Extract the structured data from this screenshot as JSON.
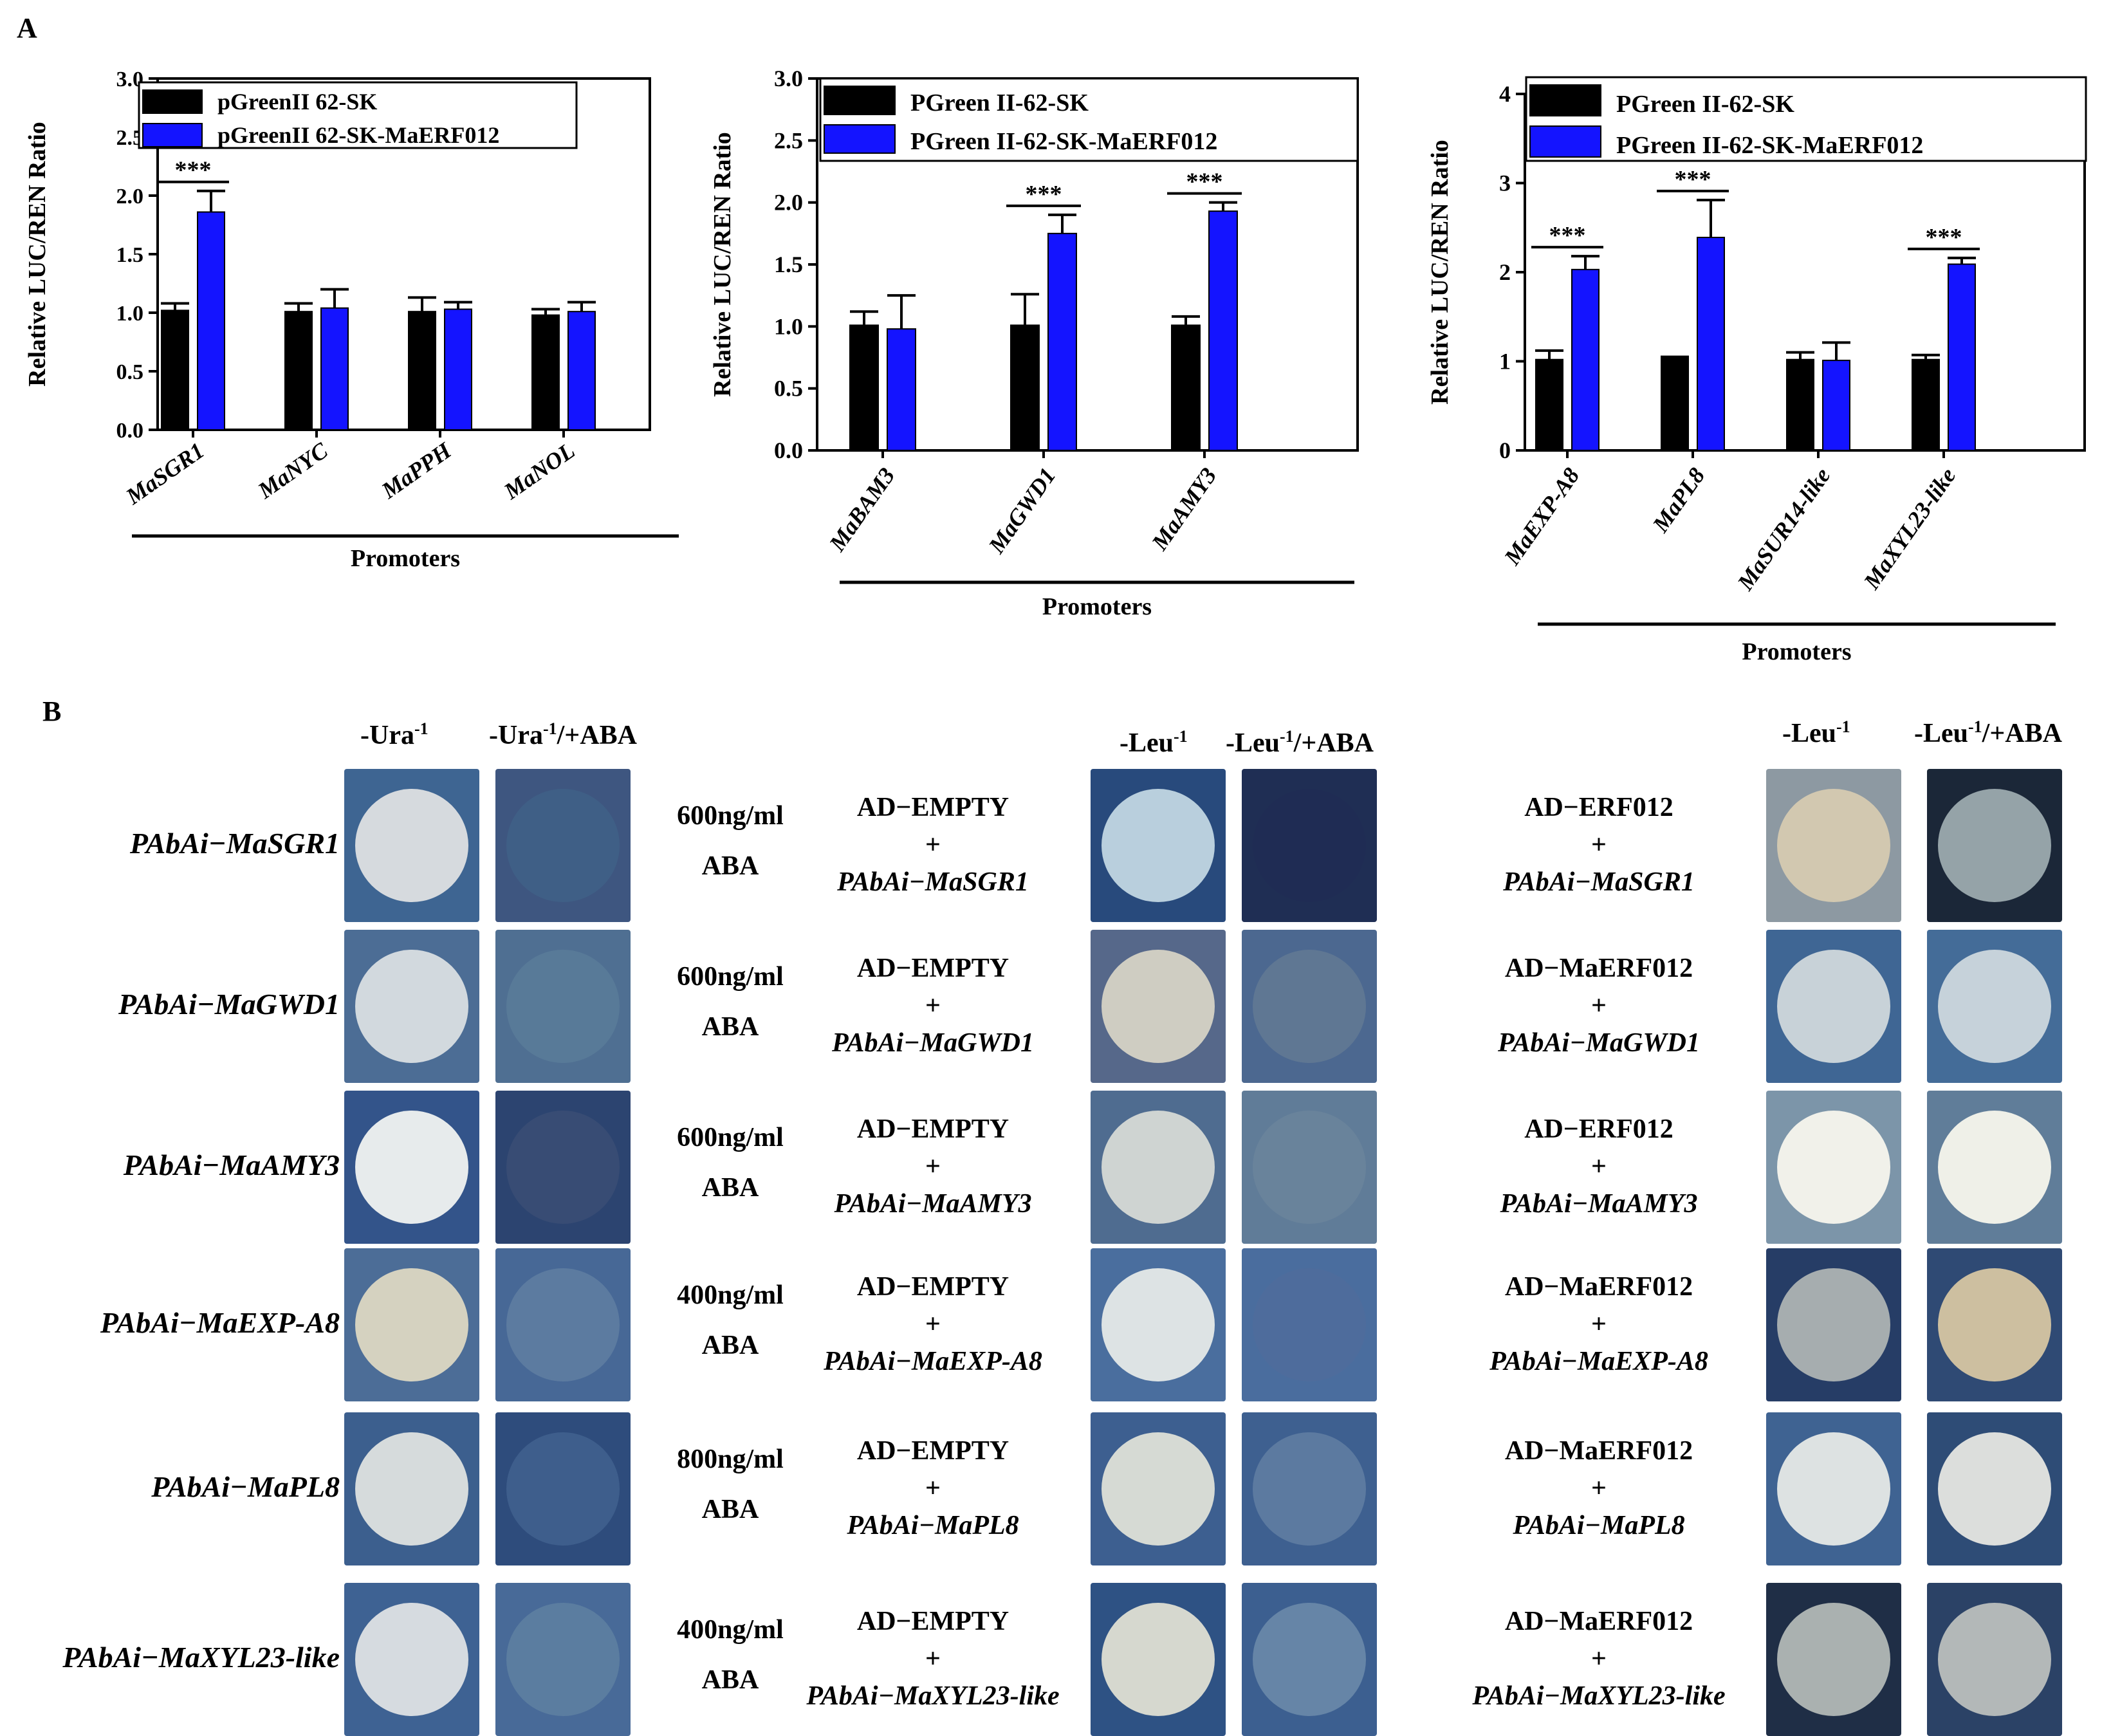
{
  "panel_a_label": "A",
  "panel_b_label": "B",
  "chart_data": [
    {
      "type": "bar",
      "ylabel": "Relative LUC/REN Ratio",
      "xlabel": "Promoters",
      "ylim": [
        0,
        3.0
      ],
      "yticks": [
        "0.0",
        "0.5",
        "1.0",
        "1.5",
        "2.0",
        "2.5",
        "3.0"
      ],
      "categories": [
        "MaSGR1",
        "MaNYC",
        "MaPPH",
        "MaNOL"
      ],
      "series": [
        {
          "name": "pGreenII 62-SK",
          "color": "#000000",
          "values": [
            1.02,
            1.01,
            1.01,
            0.98
          ],
          "errors": [
            0.06,
            0.07,
            0.12,
            0.05
          ]
        },
        {
          "name": "pGreenII 62-SK-MaERF012",
          "color": "#1414ff",
          "values": [
            1.86,
            1.04,
            1.03,
            1.01
          ],
          "errors": [
            0.18,
            0.16,
            0.06,
            0.08
          ]
        }
      ],
      "significance": [
        {
          "category": 0,
          "label": "***"
        }
      ]
    },
    {
      "type": "bar",
      "ylabel": "Relative LUC/REN Ratio",
      "xlabel": "Promoters",
      "ylim": [
        0,
        3.0
      ],
      "yticks": [
        "0.0",
        "0.5",
        "1.0",
        "1.5",
        "2.0",
        "2.5",
        "3.0"
      ],
      "categories": [
        "MaBAM3",
        "MaGWD1",
        "MaAMY3"
      ],
      "series": [
        {
          "name": "PGreen II-62-SK",
          "color": "#000000",
          "values": [
            1.01,
            1.01,
            1.01
          ],
          "errors": [
            0.11,
            0.25,
            0.07
          ]
        },
        {
          "name": "PGreen II-62-SK-MaERF012",
          "color": "#1414ff",
          "values": [
            0.98,
            1.75,
            1.93
          ],
          "errors": [
            0.27,
            0.15,
            0.07
          ]
        }
      ],
      "significance": [
        {
          "category": 1,
          "label": "***"
        },
        {
          "category": 2,
          "label": "***"
        }
      ]
    },
    {
      "type": "bar",
      "ylabel": "Relative LUC/REN Ratio",
      "xlabel": "Promoters",
      "ylim": [
        0,
        4
      ],
      "yticks": [
        "0",
        "1",
        "2",
        "3",
        "4"
      ],
      "categories": [
        "MaEXP-A8",
        "MaPL8",
        "MaSUR14-like",
        "MaXYL23-like"
      ],
      "series": [
        {
          "name": "PGreen II-62-SK",
          "color": "#000000",
          "values": [
            1.02,
            1.03,
            1.02,
            1.02
          ],
          "errors": [
            0.1,
            0.02,
            0.08,
            0.05
          ]
        },
        {
          "name": "PGreen II-62-SK-MaERF012",
          "color": "#1414ff",
          "values": [
            2.03,
            2.39,
            1.01,
            2.09
          ],
          "errors": [
            0.15,
            0.42,
            0.2,
            0.07
          ]
        }
      ],
      "significance": [
        {
          "category": 0,
          "label": "***"
        },
        {
          "category": 1,
          "label": "***"
        },
        {
          "category": 3,
          "label": "***"
        }
      ]
    }
  ],
  "panel_b": {
    "left_headers": [
      "-Ura-1",
      "-Ura-1/+ABA"
    ],
    "mid_headers": [
      "-Leu-1",
      "-Leu-1/+ABA"
    ],
    "right_headers": [
      "-Leu-1",
      "-Leu-1/+ABA"
    ],
    "rows": [
      {
        "promoter": "PAbAi−MaSGR1",
        "conc": "600ng/ml",
        "aba": "ABA",
        "ad_empty": "AD−EMPTY",
        "plus": "+",
        "empty_gene": "PAbAi−MaSGR1",
        "ad_tf": "AD−ERF012",
        "tf_gene": "PAbAi−MaSGR1"
      },
      {
        "promoter": "PAbAi−MaGWD1",
        "conc": "600ng/ml",
        "aba": "ABA",
        "ad_empty": "AD−EMPTY",
        "plus": "+",
        "empty_gene": "PAbAi−MaGWD1",
        "ad_tf": "AD−MaERF012",
        "tf_gene": "PAbAi−MaGWD1"
      },
      {
        "promoter": "PAbAi−MaAMY3",
        "conc": "600ng/ml",
        "aba": "ABA",
        "ad_empty": "AD−EMPTY",
        "plus": "+",
        "empty_gene": "PAbAi−MaAMY3",
        "ad_tf": "AD−ERF012",
        "tf_gene": "PAbAi−MaAMY3"
      },
      {
        "promoter": "PAbAi−MaEXP-A8",
        "conc": "400ng/ml",
        "aba": "ABA",
        "ad_empty": "AD−EMPTY",
        "plus": "+",
        "empty_gene": "PAbAi−MaEXP-A8",
        "ad_tf": "AD−MaERF012",
        "tf_gene": "PAbAi−MaEXP-A8"
      },
      {
        "promoter": "PAbAi−MaPL8",
        "conc": "800ng/ml",
        "aba": "ABA",
        "ad_empty": "AD−EMPTY",
        "plus": "+",
        "empty_gene": "PAbAi−MaPL8",
        "ad_tf": "AD−MaERF012",
        "tf_gene": "PAbAi−MaPL8"
      },
      {
        "promoter": "PAbAi−MaXYL23-like",
        "conc": "400ng/ml",
        "aba": "ABA",
        "ad_empty": "AD−EMPTY",
        "plus": "+",
        "empty_gene": "PAbAi−MaXYL23-like",
        "ad_tf": "AD−MaERF012",
        "tf_gene": "PAbAi−MaXYL23-like"
      }
    ]
  }
}
